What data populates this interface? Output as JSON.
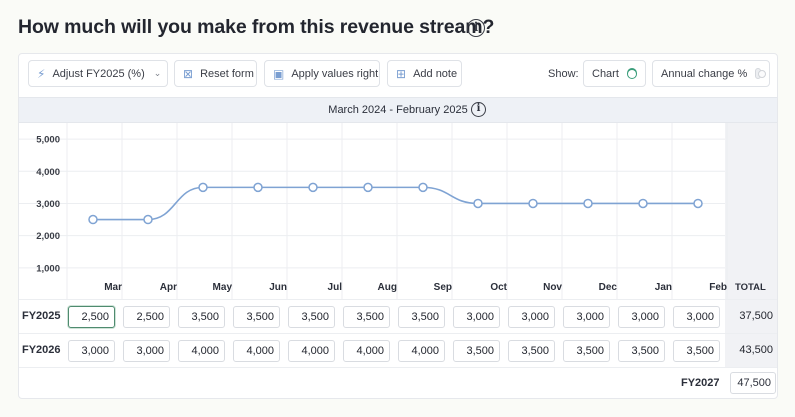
{
  "title": "How much will you make from this revenue stream?",
  "toolbar": {
    "adjust_label": "Adjust FY2025 (%)",
    "reset_label": "Reset form",
    "apply_label": "Apply values right",
    "note_label": "Add note",
    "show_label": "Show:",
    "chart_toggle_label": "Chart",
    "chart_toggle_on": true,
    "annual_change_label": "Annual change %",
    "annual_change_on": false
  },
  "period": "March 2024 - February 2025",
  "months": [
    "Mar",
    "Apr",
    "May",
    "Jun",
    "Jul",
    "Aug",
    "Sep",
    "Oct",
    "Nov",
    "Dec",
    "Jan",
    "Feb"
  ],
  "total_header": "TOTAL",
  "rows": [
    {
      "label": "FY2025",
      "values": [
        "2,500",
        "2,500",
        "3,500",
        "3,500",
        "3,500",
        "3,500",
        "3,500",
        "3,000",
        "3,000",
        "3,000",
        "3,000",
        "3,000"
      ],
      "total": "37,500"
    },
    {
      "label": "FY2026",
      "values": [
        "3,000",
        "3,000",
        "4,000",
        "4,000",
        "4,000",
        "4,000",
        "4,000",
        "3,500",
        "3,500",
        "3,500",
        "3,500",
        "3,500"
      ],
      "total": "43,500"
    }
  ],
  "fy2027": {
    "label": "FY2027",
    "value": "47,500"
  },
  "chart_data": {
    "type": "line",
    "categories": [
      "Mar",
      "Apr",
      "May",
      "Jun",
      "Jul",
      "Aug",
      "Sep",
      "Oct",
      "Nov",
      "Dec",
      "Jan",
      "Feb"
    ],
    "series": [
      {
        "values": [
          2500,
          2500,
          3500,
          3500,
          3500,
          3500,
          3500,
          3000,
          3000,
          3000,
          3000,
          3000
        ]
      }
    ],
    "yticks": [
      "5,000",
      "4,000",
      "3,000",
      "2,000",
      "1,000"
    ],
    "ylim": [
      0,
      5500
    ],
    "grid": true,
    "line_color": "#7fa3d3"
  }
}
